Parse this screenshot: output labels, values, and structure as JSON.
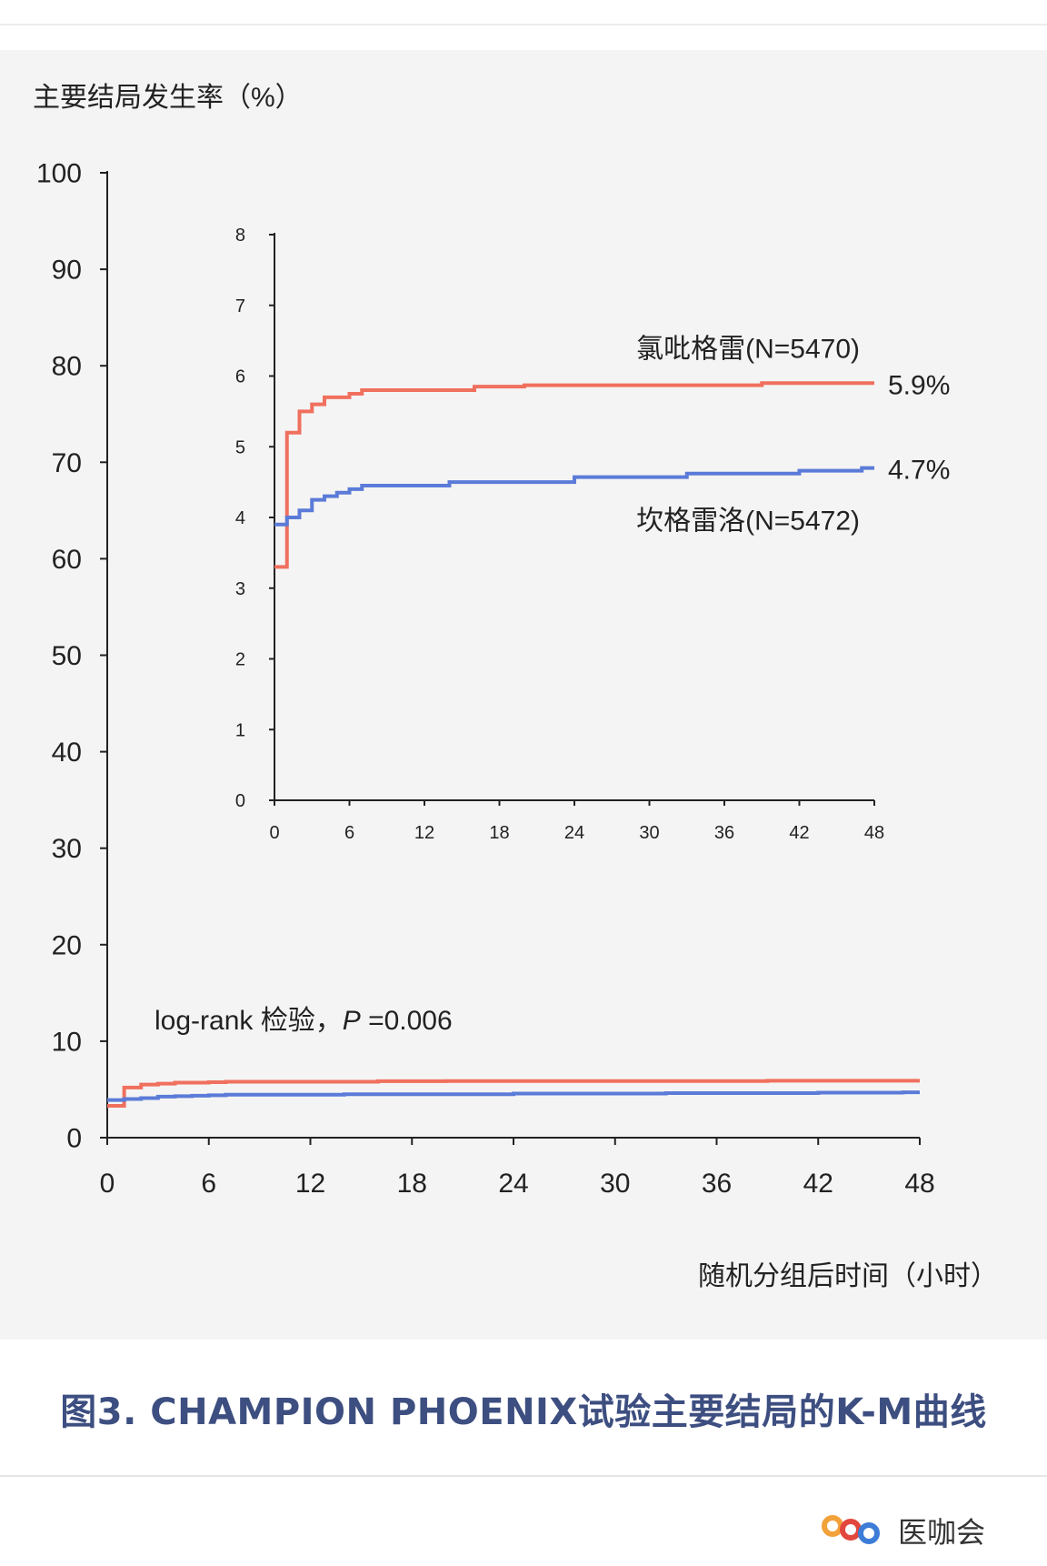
{
  "chart_data": {
    "type": "line",
    "ylabel": "主要结局发生率（%）",
    "xlabel": "随机分组后时间（小时）",
    "annotation": {
      "text": "log-rank 检验，",
      "p_symbol": "P",
      "p_value": " =0.006"
    },
    "colors": {
      "clopidogrel": "#f0705e",
      "cangrelor": "#5b7bd8"
    },
    "main": {
      "xlim": [
        0,
        48
      ],
      "ylim": [
        0,
        100
      ],
      "x_ticks": [
        0,
        6,
        12,
        18,
        24,
        30,
        36,
        42,
        48
      ],
      "y_ticks": [
        0,
        10,
        20,
        30,
        40,
        50,
        60,
        70,
        80,
        90,
        100
      ],
      "x_tick_labels": [
        "0",
        "6",
        "12",
        "18",
        "24",
        "30",
        "36",
        "42",
        "48"
      ],
      "y_tick_labels": [
        "0",
        "10",
        "20",
        "30",
        "40",
        "50",
        "60",
        "70",
        "80",
        "90",
        "100"
      ]
    },
    "inset": {
      "xlim": [
        0,
        48
      ],
      "ylim": [
        0,
        8
      ],
      "x_ticks": [
        0,
        6,
        12,
        18,
        24,
        30,
        36,
        42,
        48
      ],
      "y_ticks": [
        0,
        1,
        2,
        3,
        4,
        5,
        6,
        7,
        8
      ],
      "x_tick_labels": [
        "0",
        "6",
        "12",
        "18",
        "24",
        "30",
        "36",
        "42",
        "48"
      ],
      "y_tick_labels": [
        "0",
        "1",
        "2",
        "3",
        "4",
        "5",
        "6",
        "7",
        "8"
      ]
    },
    "series": [
      {
        "name": "氯吡格雷(N=5470)",
        "end_label": "5.9%",
        "x": [
          0,
          1,
          2,
          3,
          4,
          6,
          7,
          16,
          20,
          39,
          48
        ],
        "y": [
          3.3,
          5.2,
          5.5,
          5.6,
          5.7,
          5.75,
          5.8,
          5.85,
          5.87,
          5.9,
          5.9
        ]
      },
      {
        "name": "坎格雷洛(N=5472)",
        "end_label": "4.7%",
        "x": [
          0,
          1,
          2,
          3,
          4,
          5,
          6,
          7,
          13,
          14,
          24,
          33,
          42,
          47,
          48
        ],
        "y": [
          3.9,
          4.0,
          4.1,
          4.25,
          4.3,
          4.35,
          4.4,
          4.45,
          4.45,
          4.5,
          4.57,
          4.62,
          4.66,
          4.7,
          4.7
        ]
      }
    ]
  },
  "caption": "图3. CHAMPION PHOENIX试验主要结局的K-M曲线",
  "watermark": {
    "text": "医咖会"
  }
}
